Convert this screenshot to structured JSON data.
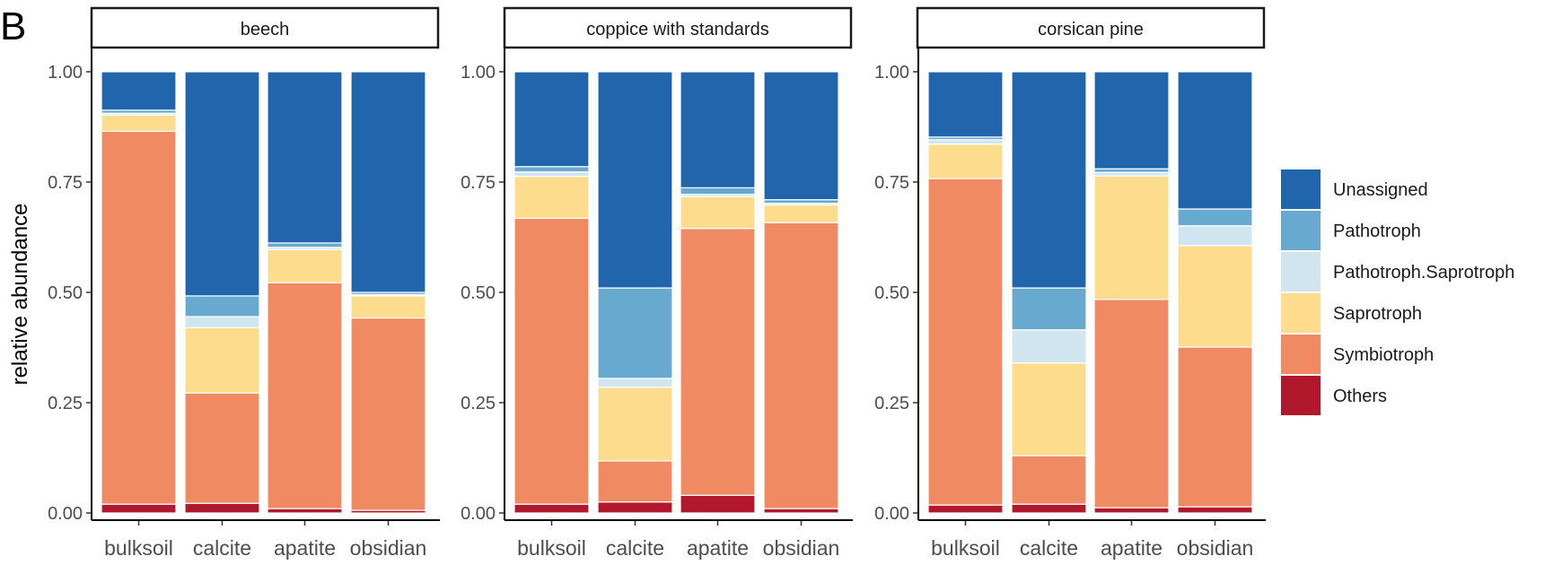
{
  "panel_tag": "B",
  "chart_data": {
    "type": "bar",
    "stacked": true,
    "ylabel": "relative abundance",
    "ylim": [
      0,
      1
    ],
    "yticks": [
      "0.00",
      "0.25",
      "0.50",
      "0.75",
      "1.00"
    ],
    "categories": [
      "bulksoil",
      "calcite",
      "apatite",
      "obsidian"
    ],
    "legend_position": "right",
    "series": [
      {
        "name": "Others",
        "color": "#b2182b"
      },
      {
        "name": "Symbiotroph",
        "color": "#ef8a62"
      },
      {
        "name": "Saprotroph",
        "color": "#fddc8e"
      },
      {
        "name": "Pathotroph.Saprotroph",
        "color": "#d1e5f0"
      },
      {
        "name": "Pathotroph",
        "color": "#67a9cf"
      },
      {
        "name": "Unassigned",
        "color": "#2166ac"
      }
    ],
    "legend_order": [
      "Unassigned",
      "Pathotroph",
      "Pathotroph.Saprotroph",
      "Saprotroph",
      "Symbiotroph",
      "Others"
    ],
    "facets": [
      {
        "title": "beech",
        "values": {
          "Others": [
            0.02,
            0.022,
            0.01,
            0.006
          ],
          "Symbiotroph": [
            0.845,
            0.25,
            0.512,
            0.436
          ],
          "Saprotroph": [
            0.037,
            0.148,
            0.075,
            0.05
          ],
          "Pathotroph.Saprotroph": [
            0.004,
            0.025,
            0.005,
            0.003
          ],
          "Pathotroph": [
            0.007,
            0.047,
            0.01,
            0.005
          ],
          "Unassigned": [
            0.087,
            0.508,
            0.388,
            0.5
          ]
        }
      },
      {
        "title": "coppice with standards",
        "values": {
          "Others": [
            0.02,
            0.025,
            0.04,
            0.01
          ],
          "Symbiotroph": [
            0.648,
            0.093,
            0.605,
            0.648
          ],
          "Saprotroph": [
            0.095,
            0.167,
            0.072,
            0.04
          ],
          "Pathotroph.Saprotroph": [
            0.01,
            0.02,
            0.005,
            0.004
          ],
          "Pathotroph": [
            0.012,
            0.205,
            0.015,
            0.008
          ],
          "Unassigned": [
            0.215,
            0.49,
            0.263,
            0.29
          ]
        }
      },
      {
        "title": "corsican pine",
        "values": {
          "Others": [
            0.018,
            0.02,
            0.012,
            0.014
          ],
          "Symbiotroph": [
            0.74,
            0.11,
            0.472,
            0.362
          ],
          "Saprotroph": [
            0.078,
            0.21,
            0.28,
            0.23
          ],
          "Pathotroph.Saprotroph": [
            0.01,
            0.075,
            0.008,
            0.045
          ],
          "Pathotroph": [
            0.006,
            0.095,
            0.008,
            0.038
          ],
          "Unassigned": [
            0.148,
            0.49,
            0.22,
            0.311
          ]
        }
      }
    ]
  }
}
